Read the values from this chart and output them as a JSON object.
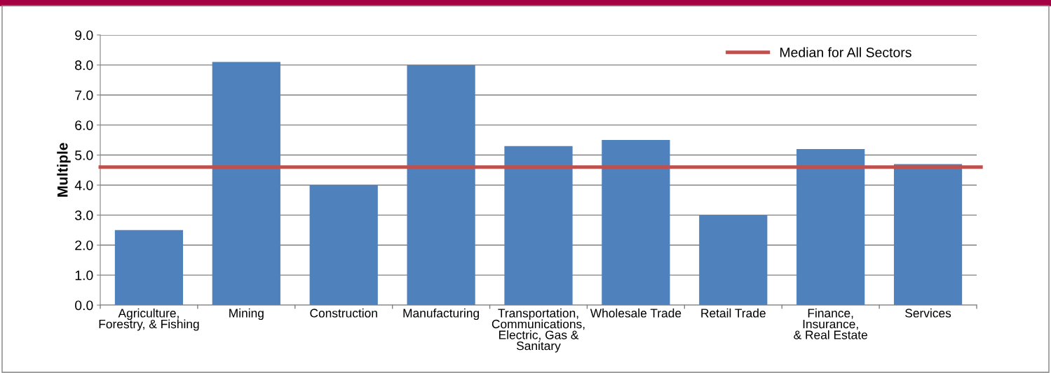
{
  "chart_data": {
    "type": "bar",
    "ylabel": "Multiple",
    "categories": [
      "Agriculture,\nForestry, & Fishing",
      "Mining",
      "Construction",
      "Manufacturing",
      "Transportation,\nCommunications,\nElectric, Gas &\nSanitary",
      "Wholesale Trade",
      "Retail Trade",
      "Finance,\nInsurance,\n& Real Estate",
      "Services"
    ],
    "values": [
      2.5,
      8.1,
      4.0,
      8.0,
      5.3,
      5.5,
      3.0,
      5.2,
      4.7
    ],
    "color": "#4f81bd",
    "ylim": [
      0,
      9
    ],
    "yticks": [
      {
        "value": 0,
        "label": "0.0"
      },
      {
        "value": 1,
        "label": "1.0"
      },
      {
        "value": 2,
        "label": "2.0"
      },
      {
        "value": 3,
        "label": "3.0"
      },
      {
        "value": 4,
        "label": "4.0"
      },
      {
        "value": 5,
        "label": "5.0"
      },
      {
        "value": 6,
        "label": "6.0"
      },
      {
        "value": 7,
        "label": "7.0"
      },
      {
        "value": 8,
        "label": "8.0"
      },
      {
        "value": 9,
        "label": "9.0"
      }
    ],
    "ref_lines": [
      {
        "axis": "y",
        "value": 4.6,
        "label": "Median for All Sectors",
        "color": "#c0504d"
      }
    ],
    "grid": "y",
    "legend": "top right"
  }
}
